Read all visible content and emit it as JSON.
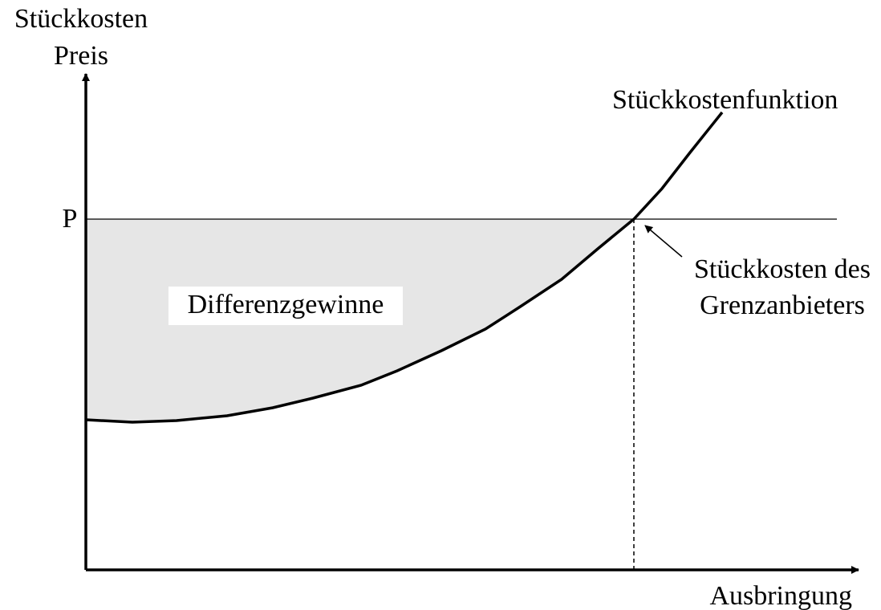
{
  "y_axis": {
    "label_lines": [
      "Stückkosten",
      "Preis"
    ]
  },
  "x_axis": {
    "label": "Ausbringung"
  },
  "price_label": "P",
  "curve_label": "Stückkostenfunktion",
  "annotation": {
    "lines": [
      "Stückkosten des",
      "Grenzanbieters"
    ]
  },
  "region_label": "Differenzgewinne"
}
